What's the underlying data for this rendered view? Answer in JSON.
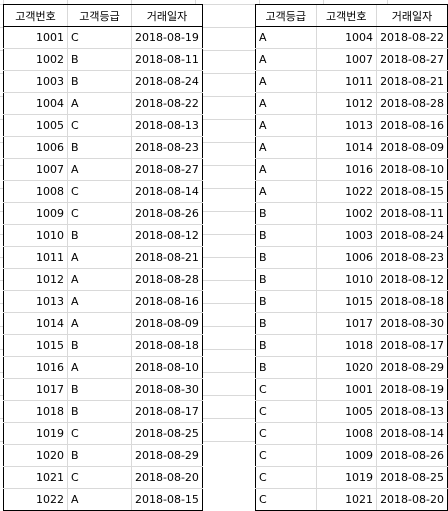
{
  "left_table": {
    "headers": [
      "고객번호",
      "고객등급",
      "거래일자"
    ],
    "rows": [
      [
        "1001",
        "C",
        "2018-08-19"
      ],
      [
        "1002",
        "B",
        "2018-08-11"
      ],
      [
        "1003",
        "B",
        "2018-08-24"
      ],
      [
        "1004",
        "A",
        "2018-08-22"
      ],
      [
        "1005",
        "C",
        "2018-08-13"
      ],
      [
        "1006",
        "B",
        "2018-08-23"
      ],
      [
        "1007",
        "A",
        "2018-08-27"
      ],
      [
        "1008",
        "C",
        "2018-08-14"
      ],
      [
        "1009",
        "C",
        "2018-08-26"
      ],
      [
        "1010",
        "B",
        "2018-08-12"
      ],
      [
        "1011",
        "A",
        "2018-08-21"
      ],
      [
        "1012",
        "A",
        "2018-08-28"
      ],
      [
        "1013",
        "A",
        "2018-08-16"
      ],
      [
        "1014",
        "A",
        "2018-08-09"
      ],
      [
        "1015",
        "B",
        "2018-08-18"
      ],
      [
        "1016",
        "A",
        "2018-08-10"
      ],
      [
        "1017",
        "B",
        "2018-08-30"
      ],
      [
        "1018",
        "B",
        "2018-08-17"
      ],
      [
        "1019",
        "C",
        "2018-08-25"
      ],
      [
        "1020",
        "B",
        "2018-08-29"
      ],
      [
        "1021",
        "C",
        "2018-08-20"
      ],
      [
        "1022",
        "A",
        "2018-08-15"
      ]
    ]
  },
  "right_table": {
    "headers": [
      "고객등급",
      "고객번호",
      "거래일자"
    ],
    "rows": [
      [
        "A",
        "1004",
        "2018-08-22"
      ],
      [
        "A",
        "1007",
        "2018-08-27"
      ],
      [
        "A",
        "1011",
        "2018-08-21"
      ],
      [
        "A",
        "1012",
        "2018-08-28"
      ],
      [
        "A",
        "1013",
        "2018-08-16"
      ],
      [
        "A",
        "1014",
        "2018-08-09"
      ],
      [
        "A",
        "1016",
        "2018-08-10"
      ],
      [
        "A",
        "1022",
        "2018-08-15"
      ],
      [
        "B",
        "1002",
        "2018-08-11"
      ],
      [
        "B",
        "1003",
        "2018-08-24"
      ],
      [
        "B",
        "1006",
        "2018-08-23"
      ],
      [
        "B",
        "1010",
        "2018-08-12"
      ],
      [
        "B",
        "1015",
        "2018-08-18"
      ],
      [
        "B",
        "1017",
        "2018-08-30"
      ],
      [
        "B",
        "1018",
        "2018-08-17"
      ],
      [
        "B",
        "1020",
        "2018-08-29"
      ],
      [
        "C",
        "1001",
        "2018-08-19"
      ],
      [
        "C",
        "1005",
        "2018-08-13"
      ],
      [
        "C",
        "1008",
        "2018-08-14"
      ],
      [
        "C",
        "1009",
        "2018-08-26"
      ],
      [
        "C",
        "1019",
        "2018-08-25"
      ],
      [
        "C",
        "1021",
        "2018-08-20"
      ]
    ]
  }
}
